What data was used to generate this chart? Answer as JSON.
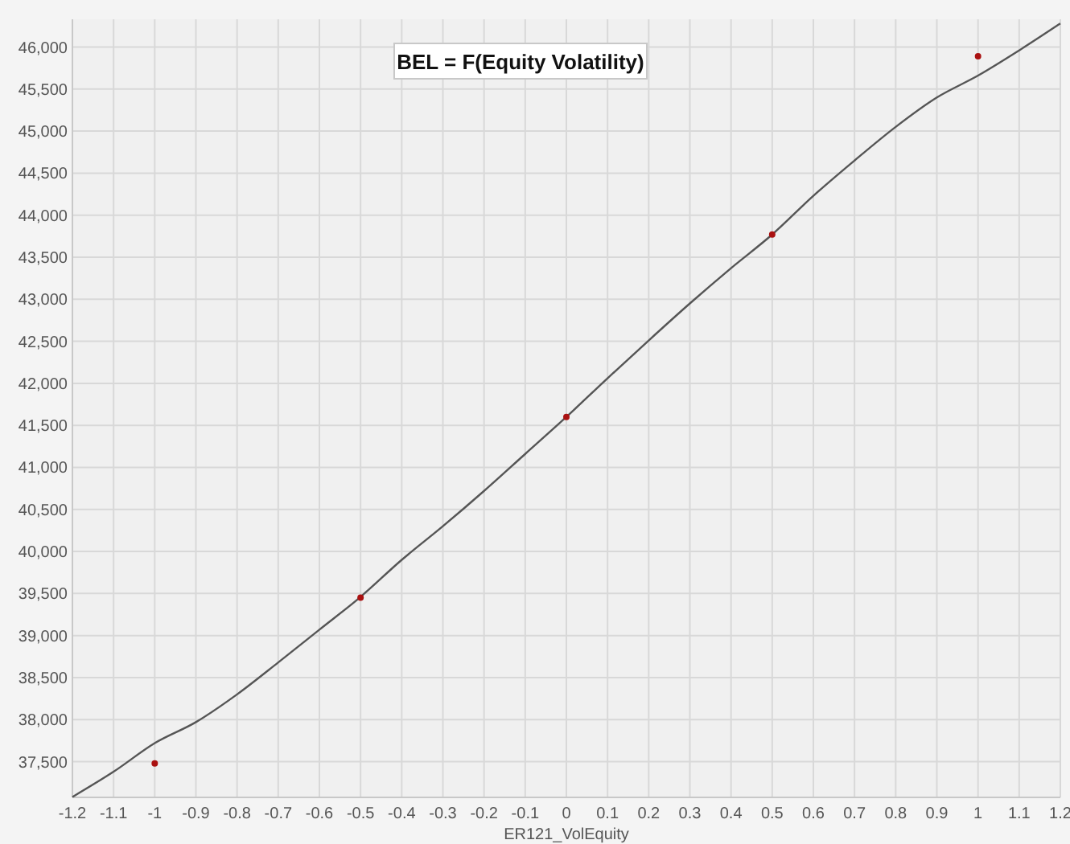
{
  "chart_data": {
    "type": "scatter",
    "title": "BEL = F(Equity Volatility)",
    "xlabel": "ER121_VolEquity",
    "xlim": [
      -1.2,
      1.2
    ],
    "ylim": [
      37075,
      46330
    ],
    "xticks": [
      -1.2,
      -1.1,
      -1,
      -0.9,
      -0.8,
      -0.7,
      -0.6,
      -0.5,
      -0.4,
      -0.3,
      -0.2,
      -0.1,
      0,
      0.1,
      0.2,
      0.3,
      0.4,
      0.5,
      0.6,
      0.7,
      0.8,
      0.9,
      1,
      1.1,
      1.2
    ],
    "yticks": [
      {
        "value": 37500,
        "label": "37,500"
      },
      {
        "value": 38000,
        "label": "38,000"
      },
      {
        "value": 38500,
        "label": "38,500"
      },
      {
        "value": 39000,
        "label": "39,000"
      },
      {
        "value": 39500,
        "label": "39,500"
      },
      {
        "value": 40000,
        "label": "40,000"
      },
      {
        "value": 40500,
        "label": "40,500"
      },
      {
        "value": 41000,
        "label": "41,000"
      },
      {
        "value": 41500,
        "label": "41,500"
      },
      {
        "value": 42000,
        "label": "42,000"
      },
      {
        "value": 42500,
        "label": "42,500"
      },
      {
        "value": 43000,
        "label": "43,000"
      },
      {
        "value": 43500,
        "label": "43,500"
      },
      {
        "value": 44000,
        "label": "44,000"
      },
      {
        "value": 44500,
        "label": "44,500"
      },
      {
        "value": 45000,
        "label": "45,000"
      },
      {
        "value": 45500,
        "label": "45,500"
      },
      {
        "value": 46000,
        "label": "46,000"
      }
    ],
    "grid": true,
    "marker": "circle",
    "series": [
      {
        "type": "line",
        "marker": "none",
        "color": "#555555",
        "x": [
          -1.2,
          -1.1,
          -1,
          -0.9,
          -0.8,
          -0.7,
          -0.6,
          -0.5,
          -0.4,
          -0.3,
          -0.2,
          -0.1,
          0,
          0.1,
          0.2,
          0.3,
          0.4,
          0.5,
          0.6,
          0.7,
          0.8,
          0.9,
          1,
          1.1,
          1.2
        ],
        "values": [
          37080,
          37380,
          37720,
          37970,
          38300,
          38680,
          39070,
          39460,
          39900,
          40300,
          40720,
          41160,
          41600,
          42060,
          42510,
          42950,
          43370,
          43770,
          44230,
          44650,
          45050,
          45400,
          45660,
          45960,
          46280
        ]
      },
      {
        "color": "#aa1111",
        "x": [
          -1,
          -0.5,
          0,
          0.5,
          1
        ],
        "values": [
          37480,
          39450,
          41600,
          43770,
          45890
        ]
      }
    ]
  }
}
